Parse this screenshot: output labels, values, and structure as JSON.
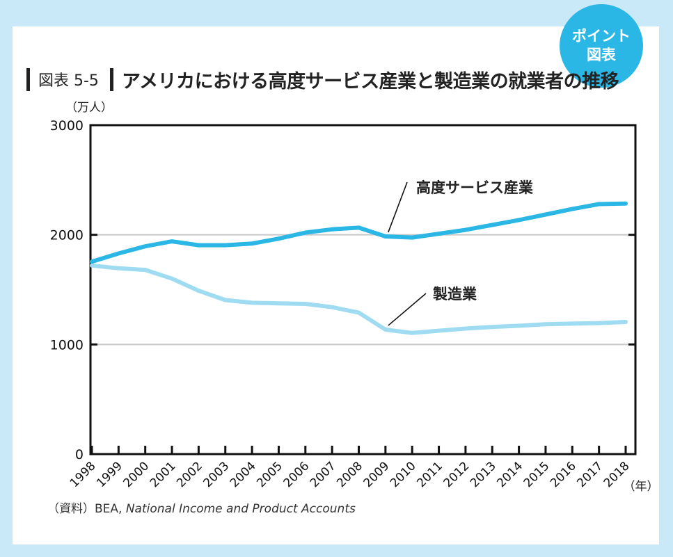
{
  "badge": {
    "line1": "ポイント",
    "line2": "図表"
  },
  "figure": {
    "label": "図表 5-5",
    "title": "アメリカにおける高度サービス産業と製造業の就業者の推移"
  },
  "source": {
    "prefix": "（資料）BEA, ",
    "publication": "National Income and Product Accounts"
  },
  "chart_data": {
    "type": "line",
    "title": "アメリカにおける高度サービス産業と製造業の就業者の推移",
    "ylabel": "（万人）",
    "xlabel": "（年）",
    "ylim": [
      0,
      3000
    ],
    "yticks": [
      0,
      1000,
      2000,
      3000
    ],
    "grid": true,
    "x": [
      "1998",
      "1999",
      "2000",
      "2001",
      "2002",
      "2003",
      "2004",
      "2005",
      "2006",
      "2007",
      "2008",
      "2009",
      "2010",
      "2011",
      "2012",
      "2013",
      "2014",
      "2015",
      "2016",
      "2017",
      "2018"
    ],
    "series": [
      {
        "name": "高度サービス産業",
        "color": "#2ab7e6",
        "values": [
          1755,
          1830,
          1895,
          1940,
          1905,
          1905,
          1920,
          1965,
          2020,
          2050,
          2065,
          1985,
          1975,
          2010,
          2045,
          2090,
          2135,
          2185,
          2235,
          2280,
          2285
        ]
      },
      {
        "name": "製造業",
        "color": "#9fdcf2",
        "values": [
          1720,
          1695,
          1680,
          1600,
          1490,
          1405,
          1380,
          1375,
          1370,
          1340,
          1290,
          1135,
          1105,
          1125,
          1145,
          1160,
          1170,
          1185,
          1190,
          1195,
          1205
        ]
      }
    ]
  }
}
